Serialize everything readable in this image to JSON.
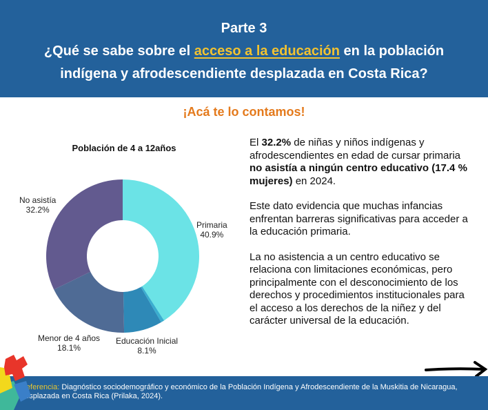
{
  "header": {
    "line1": "Parte 3",
    "q_pre": "¿Qué se sabe sobre el ",
    "q_highlight": "acceso a la educación",
    "q_post": " en la población",
    "line3": "indígena y afrodescendiente desplazada en Costa Rica?"
  },
  "subtitle": "¡Acá te lo contamos!",
  "chart_data": {
    "type": "pie",
    "title": "Población de 4 a 12años",
    "donut": true,
    "slices": [
      {
        "label": "Primaria",
        "value_label": "40.9%",
        "value": 40.9,
        "color": "#6be3e6"
      },
      {
        "label": "",
        "value_label": "",
        "value": 0.7,
        "color": "#3aaed0"
      },
      {
        "label": "Educación Inicial",
        "value_label": "8.1%",
        "value": 8.1,
        "color": "#2e89b7"
      },
      {
        "label": "Menor de 4 años",
        "value_label": "18.1%",
        "value": 18.1,
        "color": "#4f6b95"
      },
      {
        "label": "No asistía",
        "value_label": "32.2%",
        "value": 32.2,
        "color": "#625a8f"
      }
    ]
  },
  "body": {
    "p1_a": "El ",
    "p1_b": "32.2%",
    "p1_c": " de niñas y niños indígenas y afrodescendientes en edad de cursar primaria ",
    "p1_d": "no asistía a ningún centro educativo (17.4 % mujeres)",
    "p1_e": " en 2024.",
    "p2": "Este dato evidencia que muchas infancias enfrentan barreras significativas para acceder a la educación primaria.",
    "p3": "La no asistencia a un centro educativo se relaciona con limitaciones económicas, pero principalmente con el desconocimiento de los derechos y procedimientos institucionales para el acceso a los derechos de la niñez y del carácter universal de la educación."
  },
  "footer": {
    "ref_label": "Referencia:",
    "ref_text": " Diagnóstico sociodemográfico y económico de la Población Indígena y Afrodescendiente de la Muskitia de Nicaragua, desplazada en Costa Rica (Prilaka, 2024)."
  }
}
